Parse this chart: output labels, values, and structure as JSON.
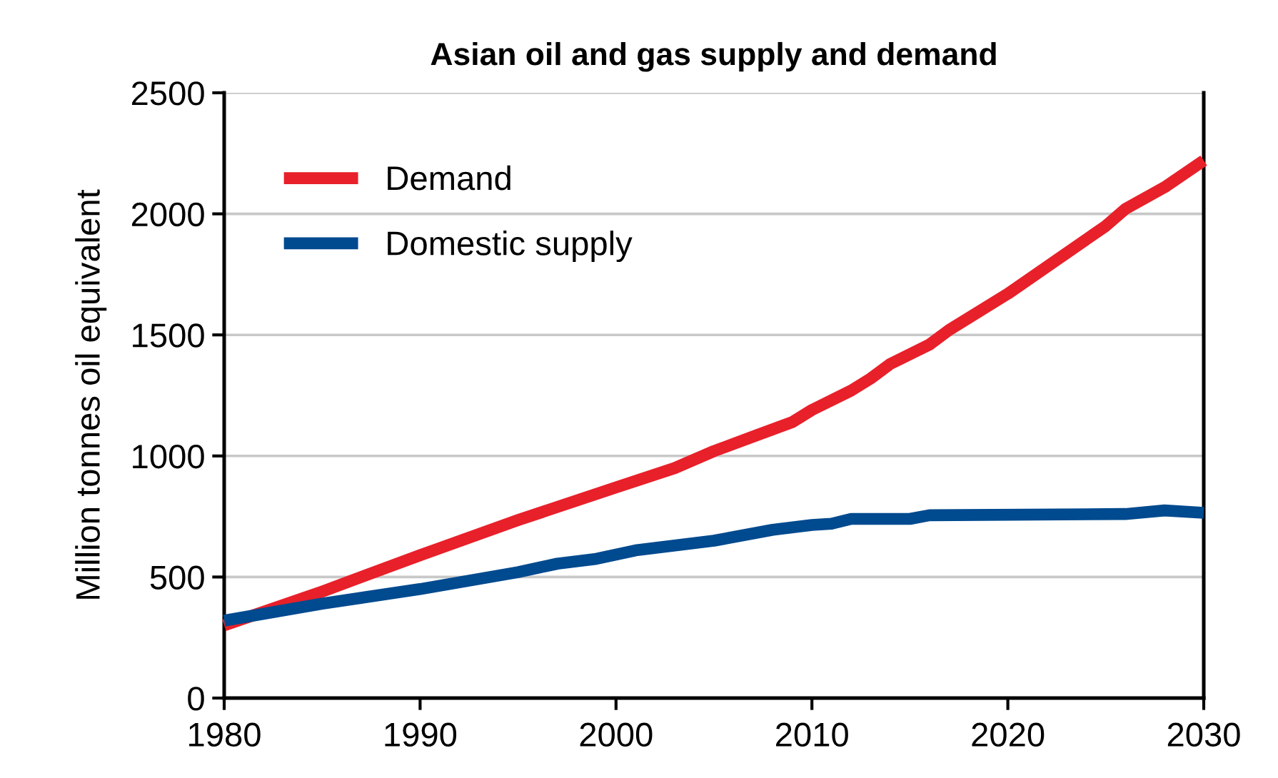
{
  "chart_data": {
    "type": "line",
    "title": "Asian oil and gas supply and demand",
    "ylabel": "Million tonnes oil equivalent",
    "xlim": [
      1980,
      2030
    ],
    "xticks": [
      1980,
      1990,
      2000,
      2010,
      2020,
      2030
    ],
    "ylim": [
      0,
      2500
    ],
    "yticks": [
      0,
      500,
      1000,
      1500,
      2000,
      2500
    ],
    "grid": "y",
    "legend": "top left",
    "marker": "none",
    "line_style": "solid",
    "series": [
      {
        "name": "Demand",
        "color": "#e8202a",
        "x": [
          1980,
          1985,
          1990,
          1995,
          2000,
          2003,
          2005,
          2007,
          2009,
          2010,
          2012,
          2013,
          2014,
          2016,
          2017,
          2020,
          2025,
          2026,
          2028,
          2030
        ],
        "values": [
          300,
          440,
          590,
          735,
          870,
          950,
          1020,
          1080,
          1140,
          1190,
          1270,
          1320,
          1380,
          1460,
          1520,
          1670,
          1950,
          2020,
          2110,
          2220
        ]
      },
      {
        "name": "Domestic supply",
        "color": "#004a8f",
        "x": [
          1980,
          1985,
          1990,
          1995,
          1997,
          1999,
          2001,
          2005,
          2008,
          2010,
          2011,
          2012,
          2015,
          2016,
          2026,
          2028,
          2030
        ],
        "values": [
          320,
          390,
          450,
          520,
          555,
          575,
          610,
          650,
          695,
          715,
          720,
          740,
          740,
          755,
          760,
          775,
          765
        ]
      }
    ]
  }
}
